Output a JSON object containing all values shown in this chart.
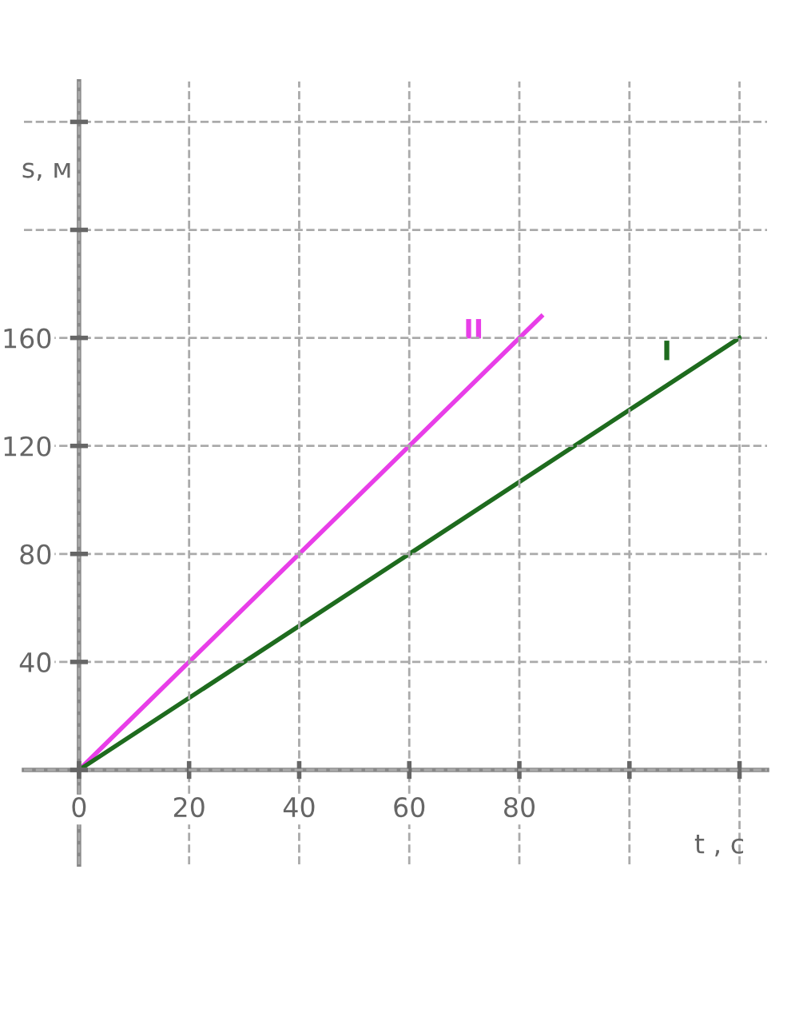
{
  "chart_data": {
    "type": "line",
    "xlabel": "t , c",
    "ylabel": "s, м",
    "series": [
      {
        "name": "II",
        "color": "#e83ee8",
        "x": [
          0,
          84
        ],
        "values": [
          0,
          168
        ]
      },
      {
        "name": "I",
        "color": "#1e6b1e",
        "x": [
          0,
          120
        ],
        "values": [
          0,
          160
        ]
      }
    ],
    "xlim": [
      -10,
      125
    ],
    "ylim": [
      -35,
      255
    ],
    "xticks": [
      {
        "value": 0,
        "label": "0"
      },
      20,
      40,
      60,
      80,
      {
        "value": 100,
        "label": null
      },
      {
        "value": 120,
        "label": null
      }
    ],
    "yticks": [
      {
        "value": 0,
        "label": null
      },
      40,
      80,
      120,
      160,
      {
        "value": 200,
        "label": null
      },
      {
        "value": 240,
        "label": null
      }
    ],
    "grid": true,
    "legend": false,
    "line_style": "solid"
  }
}
